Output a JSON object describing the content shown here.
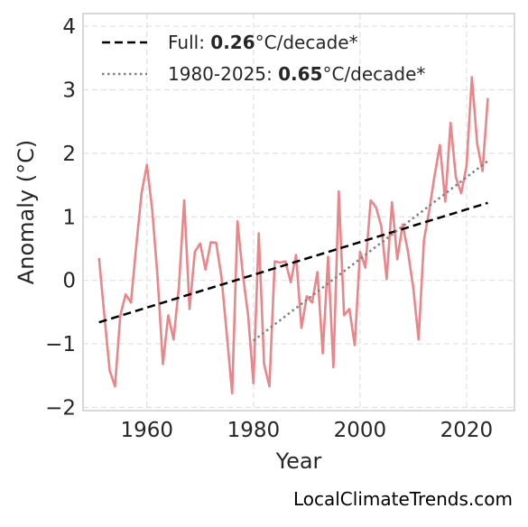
{
  "chart_data": {
    "type": "line",
    "xlabel": "Year",
    "ylabel": "Anomaly (°C)",
    "xlim": [
      1948,
      2029
    ],
    "ylim": [
      -2.05,
      4.2
    ],
    "x_ticks": [
      1960,
      1980,
      2000,
      2020
    ],
    "y_ticks": [
      4,
      3,
      2,
      1,
      0,
      -1,
      -2
    ],
    "y_tick_labels": [
      "4",
      "3",
      "2",
      "1",
      "0",
      "−1",
      "−2"
    ],
    "grid": true,
    "legend_position": "top-left",
    "colors": {
      "series": "#e8868a",
      "trend_full": "#000000",
      "trend_recent": "#808080",
      "grid": "#e0e0e0",
      "frame": "#cccccc"
    },
    "series": [
      {
        "x": [
          1951,
          1952,
          1953,
          1954,
          1955,
          1956,
          1957,
          1958,
          1959,
          1960,
          1961,
          1962,
          1963,
          1964,
          1965,
          1966,
          1967,
          1968,
          1969,
          1970,
          1971,
          1972,
          1973,
          1974,
          1975,
          1976,
          1977,
          1978,
          1979,
          1980,
          1981,
          1982,
          1983,
          1984,
          1985,
          1986,
          1987,
          1988,
          1989,
          1990,
          1991,
          1992,
          1993,
          1994,
          1995,
          1996,
          1997,
          1998,
          1999,
          2000,
          2001,
          2002,
          2003,
          2004,
          2005,
          2006,
          2007,
          2008,
          2009,
          2010,
          2011,
          2012,
          2013,
          2014,
          2015,
          2016,
          2017,
          2018,
          2019,
          2020,
          2021,
          2022,
          2023,
          2024
        ],
        "values": [
          0.35,
          -0.55,
          -1.42,
          -1.67,
          -0.55,
          -0.22,
          -0.35,
          0.55,
          1.38,
          1.82,
          1.1,
          0.05,
          -1.32,
          -0.55,
          -0.93,
          -0.1,
          1.26,
          -0.45,
          0.45,
          0.58,
          0.17,
          0.6,
          0.59,
          0.05,
          -0.85,
          -1.78,
          0.93,
          0.1,
          -0.55,
          -1.62,
          0.74,
          -1.32,
          -1.67,
          0.3,
          0.28,
          0.3,
          -0.03,
          0.4,
          -0.75,
          -0.25,
          -0.35,
          0.13,
          -1.15,
          0.37,
          -1.37,
          1.4,
          -0.55,
          -0.45,
          -1.02,
          0.45,
          0.2,
          1.26,
          1.15,
          0.85,
          0.02,
          1.23,
          0.33,
          0.88,
          0.45,
          -0.12,
          -0.93,
          0.63,
          1.1,
          1.65,
          2.13,
          1.24,
          2.48,
          1.62,
          1.37,
          1.8,
          3.2,
          2.15,
          1.72,
          2.87
        ]
      }
    ],
    "trends": [
      {
        "label_prefix": "Full: ",
        "label_value": "0.26",
        "label_suffix": "°C/decade*",
        "style": "dashed",
        "x": [
          1951,
          2024
        ],
        "values": [
          -0.66,
          1.22
        ]
      },
      {
        "label_prefix": "1980-2025: ",
        "label_value": "0.65",
        "label_suffix": "°C/decade*",
        "style": "dotted",
        "x": [
          1980,
          2024
        ],
        "values": [
          -0.95,
          1.88
        ]
      }
    ]
  },
  "credit": "LocalClimateTrends.com"
}
